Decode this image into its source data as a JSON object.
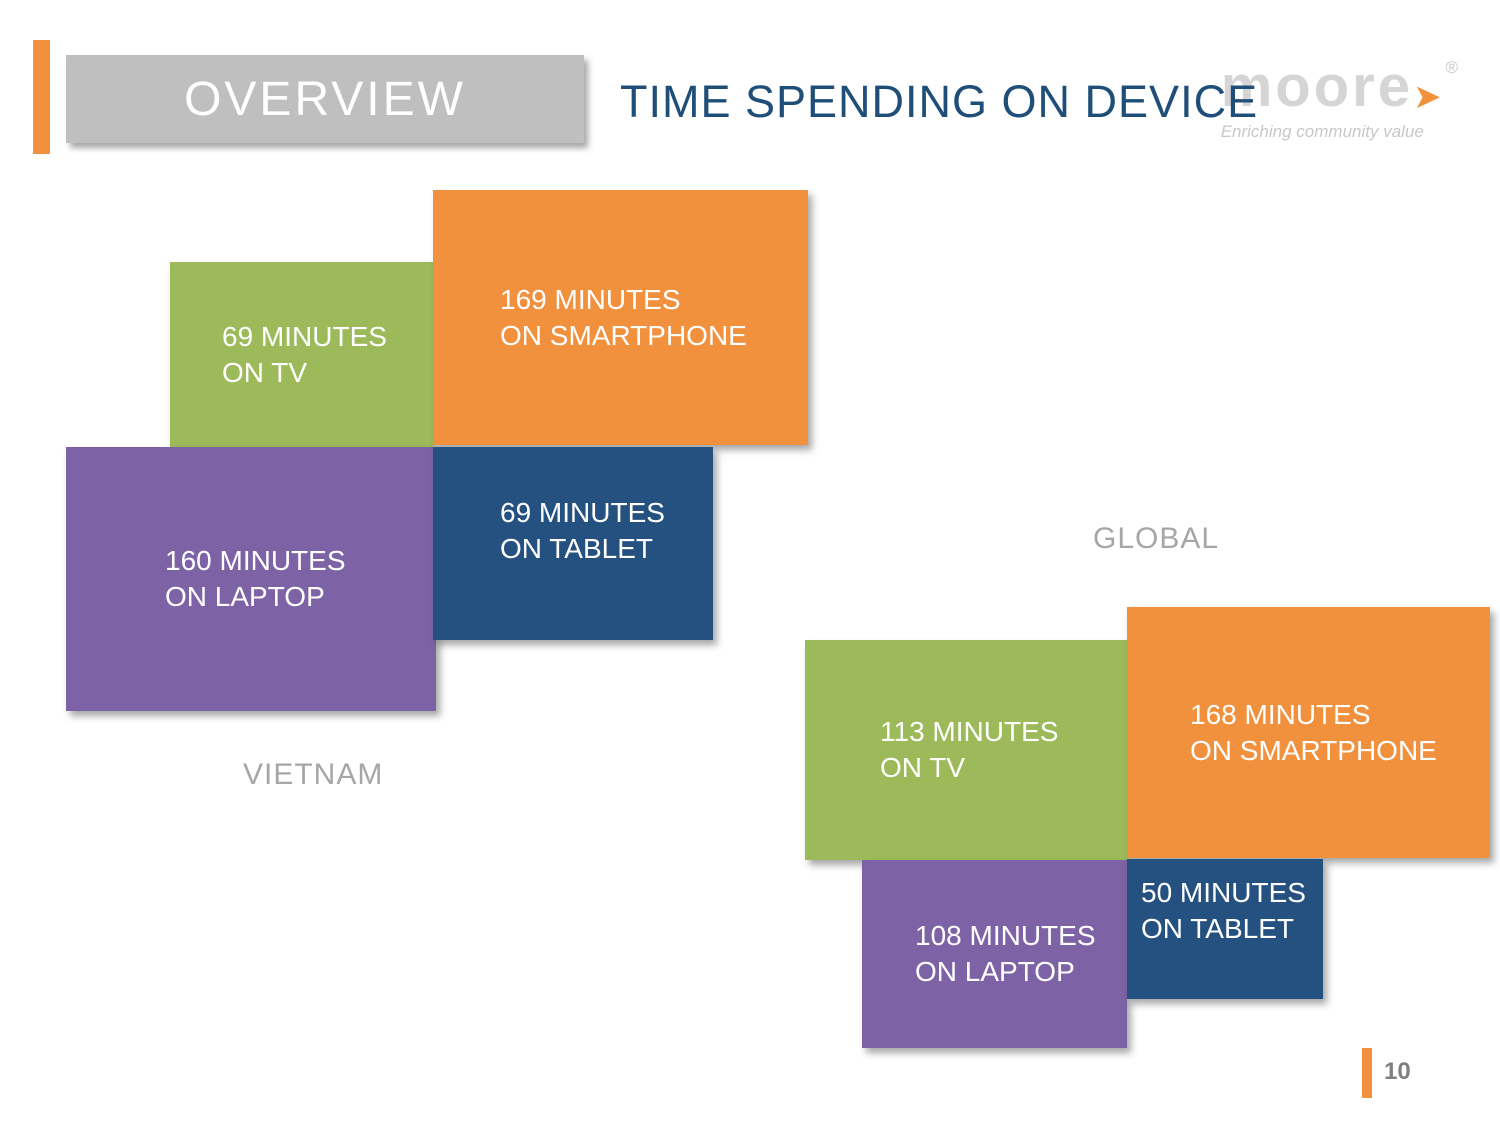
{
  "header": {
    "overview_label": "OVERVIEW",
    "title": "TIME SPENDING ON DEVICE",
    "logo": {
      "brand": "moore",
      "registered_mark": "®",
      "tagline": "Enriching community value"
    }
  },
  "groups": [
    {
      "name": "VIETNAM",
      "blocks": [
        {
          "device": "TV",
          "minutes": 69,
          "label": "69 MINUTES\nON TV",
          "color": "#9CBA5A"
        },
        {
          "device": "SMARTPHONE",
          "minutes": 169,
          "label": "169 MINUTES\nON SMARTPHONE",
          "color": "#F2913D"
        },
        {
          "device": "LAPTOP",
          "minutes": 160,
          "label": "160 MINUTES\nON LAPTOP",
          "color": "#7D63A5"
        },
        {
          "device": "TABLET",
          "minutes": 69,
          "label": "69 MINUTES\nON TABLET",
          "color": "#255180"
        }
      ]
    },
    {
      "name": "GLOBAL",
      "blocks": [
        {
          "device": "TV",
          "minutes": 113,
          "label": "113 MINUTES\nON TV",
          "color": "#9CBA5A"
        },
        {
          "device": "SMARTPHONE",
          "minutes": 168,
          "label": "168 MINUTES\nON SMARTPHONE",
          "color": "#F2913D"
        },
        {
          "device": "LAPTOP",
          "minutes": 108,
          "label": "108 MINUTES\nON LAPTOP",
          "color": "#7D63A5"
        },
        {
          "device": "TABLET",
          "minutes": 50,
          "label": "50 MINUTES\nON TABLET",
          "color": "#255180"
        }
      ]
    }
  ],
  "footer": {
    "page_number": "10"
  },
  "colors": {
    "accent_orange": "#F2913D",
    "green": "#9CBA5A",
    "purple": "#7D63A5",
    "dark_blue": "#255180",
    "overview_box_gray": "#BFBFBF",
    "title_blue": "#1F4E79",
    "group_label_gray": "#A6A6A6",
    "page_number_gray": "#7F7F7F"
  },
  "chart_data": {
    "type": "bar",
    "title": "TIME SPENDING ON DEVICE",
    "unit": "minutes",
    "categories": [
      "TV",
      "SMARTPHONE",
      "LAPTOP",
      "TABLET"
    ],
    "series": [
      {
        "name": "VIETNAM",
        "values": [
          69,
          169,
          160,
          69
        ]
      },
      {
        "name": "GLOBAL",
        "values": [
          113,
          168,
          108,
          50
        ]
      }
    ],
    "legend_position": "none",
    "grid": false,
    "notes": "Infographic-style slide: block size loosely proportional to minutes per device for Vietnam vs Global"
  }
}
